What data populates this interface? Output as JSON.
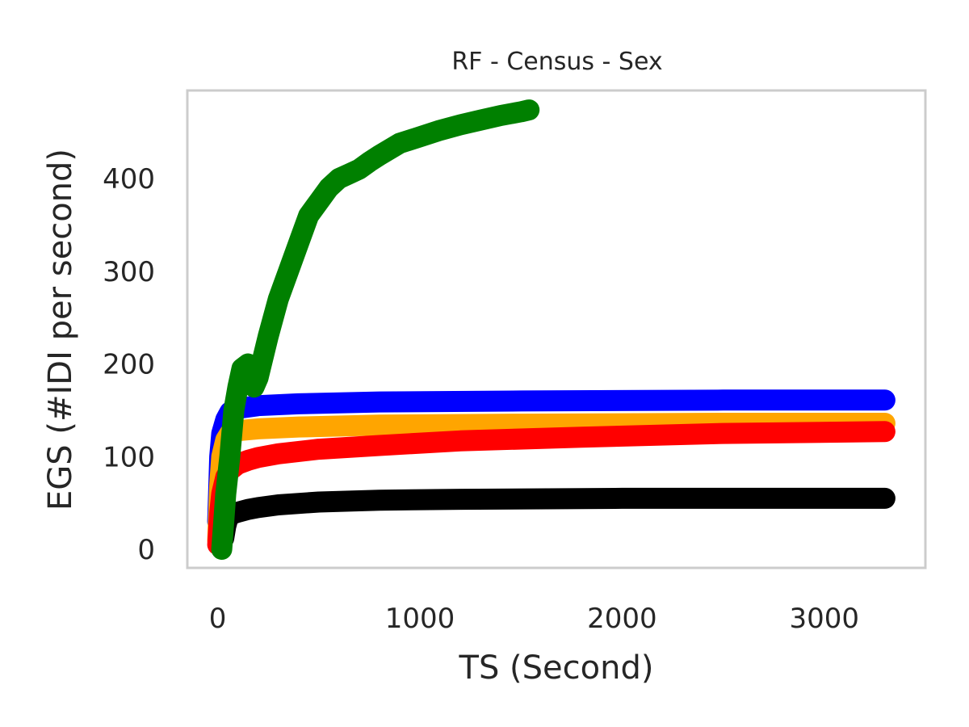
{
  "chart_data": {
    "type": "line",
    "title": "RF - Census - Sex",
    "xlabel": "TS (Second)",
    "ylabel": "EGS (#IDI  per second)",
    "xlim": [
      -150,
      3500
    ],
    "ylim": [
      -20,
      495
    ],
    "xticks": [
      0,
      1000,
      2000,
      3000
    ],
    "yticks": [
      0,
      100,
      200,
      300,
      400
    ],
    "grid": false,
    "legend": "none",
    "series": [
      {
        "name": "blue",
        "color": "#0000ff",
        "x": [
          0,
          10,
          20,
          40,
          60,
          100,
          200,
          400,
          800,
          1500,
          2500,
          3300
        ],
        "y": [
          30,
          100,
          125,
          140,
          148,
          152,
          155,
          157,
          159,
          160,
          161,
          161
        ]
      },
      {
        "name": "orange",
        "color": "#ffa500",
        "x": [
          0,
          10,
          20,
          40,
          60,
          100,
          200,
          400,
          800,
          1500,
          2500,
          3300
        ],
        "y": [
          10,
          70,
          100,
          118,
          125,
          128,
          130,
          132,
          134,
          135,
          136,
          136
        ]
      },
      {
        "name": "red",
        "color": "#ff0000",
        "x": [
          0,
          10,
          20,
          40,
          60,
          100,
          150,
          200,
          300,
          500,
          800,
          1200,
          1800,
          2500,
          3300
        ],
        "y": [
          5,
          40,
          60,
          78,
          85,
          92,
          96,
          99,
          103,
          108,
          112,
          117,
          121,
          125,
          127
        ]
      },
      {
        "name": "black",
        "color": "#000000",
        "x": [
          30,
          40,
          50,
          70,
          100,
          150,
          200,
          300,
          500,
          800,
          1200,
          2000,
          3300
        ],
        "y": [
          12,
          25,
          33,
          38,
          40,
          43,
          45,
          48,
          51,
          53,
          54,
          55,
          55
        ]
      },
      {
        "name": "green",
        "color": "#008000",
        "x": [
          20,
          40,
          60,
          80,
          100,
          120,
          150,
          180,
          200,
          250,
          300,
          350,
          400,
          450,
          500,
          550,
          600,
          650,
          700,
          750,
          800,
          900,
          1000,
          1100,
          1200,
          1300,
          1400,
          1500,
          1540
        ],
        "y": [
          0,
          60,
          100,
          150,
          175,
          195,
          200,
          175,
          185,
          230,
          270,
          300,
          330,
          360,
          375,
          390,
          400,
          405,
          410,
          418,
          425,
          438,
          445,
          452,
          458,
          463,
          468,
          472,
          474
        ]
      }
    ]
  }
}
